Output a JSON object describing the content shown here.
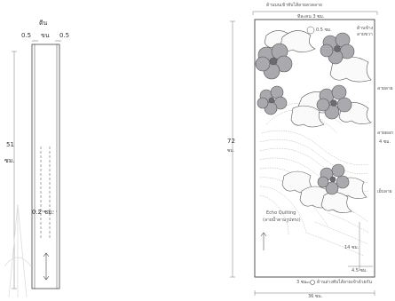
{
  "left_panel": {
    "top_label_1": "ตีน",
    "top_label_2": "ขน",
    "seam_left": "0.5",
    "seam_right": "0.5",
    "length_value": "51",
    "length_unit": "ซม.",
    "mid_label": "0.2 ซม."
  },
  "right_panel": {
    "top_note": "ด้านบนเข้าทับไส้ลายลวดลาย",
    "top_measure": "ทีละคน 3 ซม.",
    "height_value": "72",
    "height_unit": "ซม.",
    "flower_note": "0.5 ซม.",
    "side_note_1": "ด้านข้าง",
    "side_note_2": "ลายขวา",
    "right_note_1": "ลายลาย",
    "right_note_2": "ลายดอก",
    "right_note_3": "4 ซม.",
    "right_note_4": "เย็บลาย",
    "quilting_label": "Echo Quilting",
    "quilting_sub": "(ลายน้ำตามรูปทรง)",
    "measure_14": "14 ซม.",
    "measure_45": "4.5 ซม.",
    "bottom_3": "3 ซม.",
    "bottom_note": "ด้านล่างพับไส้ลายเข้าด้วยกัน",
    "width_value": "36 ซม."
  }
}
